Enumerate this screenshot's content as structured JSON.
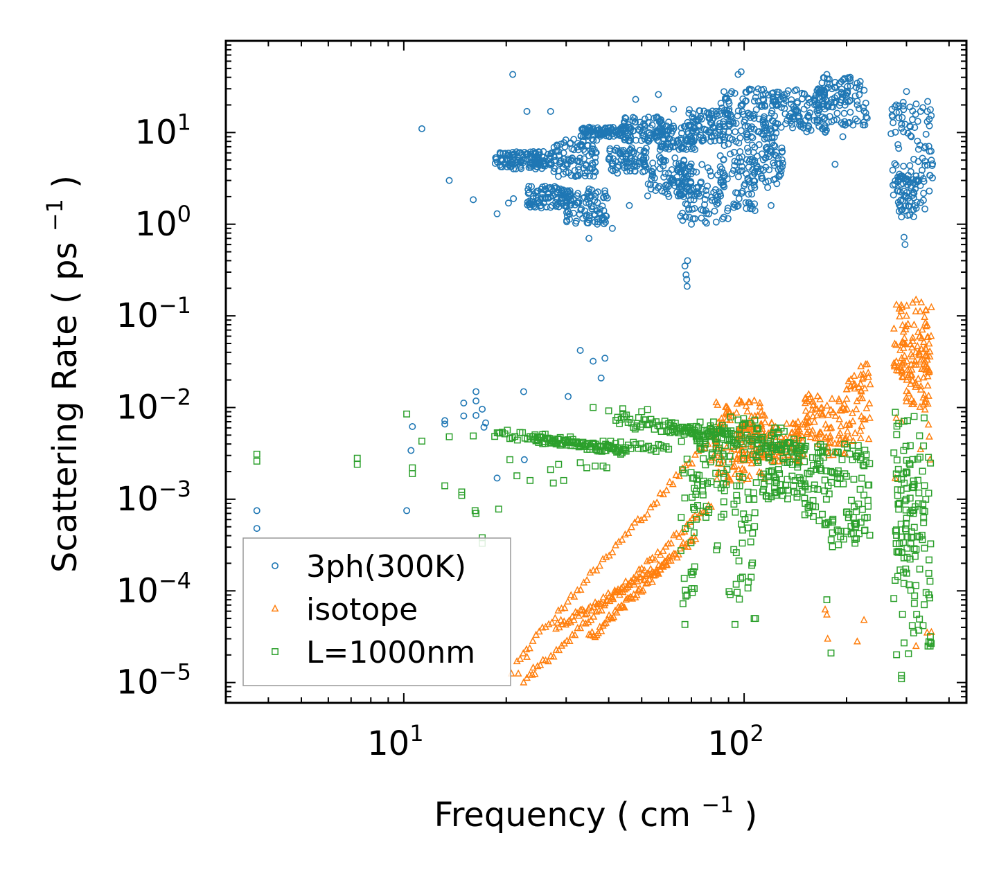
{
  "chart_data": {
    "type": "scatter",
    "xscale": "log",
    "yscale": "log",
    "xlabel": "Frequency",
    "xlabel_unit": "cm",
    "xlabel_exp": "−1",
    "ylabel": "Scattering Rate",
    "ylabel_unit": "ps",
    "ylabel_exp": "−1",
    "xlim": [
      3.0,
      450
    ],
    "ylim": [
      6e-06,
      100
    ],
    "x_ticks": [
      {
        "base": "10",
        "exp": "1",
        "value": 10
      },
      {
        "base": "10",
        "exp": "2",
        "value": 100
      }
    ],
    "y_ticks": [
      {
        "base": "10",
        "exp": "1",
        "value": 10
      },
      {
        "base": "10",
        "exp": "0",
        "value": 1
      },
      {
        "base": "10",
        "exp": "−1",
        "value": 0.1
      },
      {
        "base": "10",
        "exp": "−2",
        "value": 0.01
      },
      {
        "base": "10",
        "exp": "−3",
        "value": 0.001
      },
      {
        "base": "10",
        "exp": "−4",
        "value": 0.0001
      },
      {
        "base": "10",
        "exp": "−5",
        "value": 1e-05
      }
    ],
    "legend_position": "lower-left",
    "series": [
      {
        "name": "3ph(300K)",
        "marker": "circle",
        "color": "#1f77b4",
        "points": [
          [
            3.7,
            0.00075
          ],
          [
            3.7,
            0.00048
          ],
          [
            10.2,
            0.00075
          ],
          [
            10.5,
            0.0034
          ],
          [
            10.6,
            0.0062
          ],
          [
            11.3,
            11
          ],
          [
            13.2,
            0.0072
          ],
          [
            13.2,
            0.0066
          ],
          [
            13.6,
            3.0
          ],
          [
            15.0,
            0.0112
          ],
          [
            15.0,
            0.0081
          ],
          [
            16.0,
            1.85
          ],
          [
            16.3,
            0.0149
          ],
          [
            16.3,
            0.0118
          ],
          [
            16.3,
            0.0082
          ],
          [
            17.0,
            0.0096
          ],
          [
            17.2,
            0.0061
          ],
          [
            17.4,
            0.0068
          ],
          [
            18.8,
            1.3
          ],
          [
            18.8,
            0.0017
          ],
          [
            20.9,
            43
          ],
          [
            20.3,
            1.7
          ],
          [
            21.0,
            1.9
          ],
          [
            22.0,
            4.2
          ],
          [
            22.5,
            0.0149
          ],
          [
            22.6,
            0.0027
          ],
          [
            23.0,
            17
          ],
          [
            24.0,
            1.9
          ],
          [
            26.0,
            2.6
          ],
          [
            27.0,
            17
          ],
          [
            30.4,
            0.0132
          ],
          [
            30.0,
            1.6
          ],
          [
            33.0,
            0.042
          ],
          [
            35.0,
            0.7
          ],
          [
            36.0,
            0.032
          ],
          [
            38.0,
            0.021
          ],
          [
            39.0,
            0.0345
          ],
          [
            41.0,
            0.9
          ],
          [
            46.0,
            1.6
          ],
          [
            48.0,
            23
          ],
          [
            56.0,
            26
          ],
          [
            60.0,
            13
          ],
          [
            62.0,
            18
          ],
          [
            66.0,
            1.1
          ],
          [
            67.0,
            0.35
          ],
          [
            67.5,
            0.28
          ],
          [
            68.0,
            0.21
          ],
          [
            67.8,
            0.25
          ],
          [
            68.2,
            0.4
          ],
          [
            70.0,
            1.0
          ],
          [
            75.0,
            14
          ],
          [
            80.0,
            9
          ],
          [
            86.0,
            4
          ],
          [
            90.0,
            22
          ],
          [
            96.0,
            43
          ],
          [
            98.0,
            46
          ],
          [
            100.0,
            13
          ],
          [
            105.0,
            2.5
          ],
          [
            110.0,
            22
          ],
          [
            112.0,
            4
          ],
          [
            120.0,
            1.6
          ],
          [
            130.0,
            24
          ],
          [
            140.0,
            14
          ],
          [
            150.0,
            18
          ],
          [
            165.0,
            30
          ],
          [
            175.0,
            43
          ],
          [
            185.0,
            4.5
          ],
          [
            195.0,
            9
          ],
          [
            205.0,
            40
          ],
          [
            215.0,
            20
          ],
          [
            225.0,
            13
          ],
          [
            280.0,
            20
          ],
          [
            285.0,
            3
          ],
          [
            290.0,
            1.2
          ],
          [
            295.0,
            0.72
          ],
          [
            297.0,
            0.6
          ],
          [
            300.0,
            28
          ],
          [
            310.0,
            9
          ],
          [
            320.0,
            3
          ],
          [
            330.0,
            17
          ],
          [
            350.0,
            14
          ],
          [
            355.0,
            5
          ]
        ],
        "bands": [
          {
            "x": [
              18.5,
              28.0
            ],
            "y": [
              4.0,
              6.2
            ]
          },
          {
            "x": [
              23.0,
              31.0
            ],
            "y": [
              1.5,
              2.6
            ]
          },
          {
            "x": [
              27.0,
              37.0
            ],
            "y": [
              3.3,
              8.5
            ]
          },
          {
            "x": [
              30.0,
              40.0
            ],
            "y": [
              1.0,
              2.5
            ]
          },
          {
            "x": [
              33.0,
              44.0
            ],
            "y": [
              9.0,
              11.5
            ]
          },
          {
            "x": [
              40.0,
              52.0
            ],
            "y": [
              3.6,
              7.0
            ]
          },
          {
            "x": [
              44.0,
              58.0
            ],
            "y": [
              8.0,
              15.0
            ]
          },
          {
            "x": [
              52.0,
              70.0
            ],
            "y": [
              2.0,
              5.5
            ]
          },
          {
            "x": [
              55.0,
              72.0
            ],
            "y": [
              6.5,
              12.0
            ]
          },
          {
            "x": [
              68.0,
              92.0
            ],
            "y": [
              8.0,
              18.0
            ]
          },
          {
            "x": [
              65.0,
              90.0
            ],
            "y": [
              1.0,
              4.5
            ]
          },
          {
            "x": [
              85.0,
              125.0
            ],
            "y": [
              5.0,
              30.0
            ]
          },
          {
            "x": [
              92.0,
              108.0
            ],
            "y": [
              1.4,
              5.0
            ]
          },
          {
            "x": [
              100.0,
              130.0
            ],
            "y": [
              2.5,
              15.0
            ]
          },
          {
            "x": [
              120.0,
              175.0
            ],
            "y": [
              10.0,
              30.0
            ]
          },
          {
            "x": [
              160.0,
              230.0
            ],
            "y": [
              12.0,
              40.0
            ]
          },
          {
            "x": [
              270.0,
              360.0
            ],
            "y": [
              2.0,
              22.0
            ]
          },
          {
            "x": [
              280.0,
              340.0
            ],
            "y": [
              1.2,
              3.5
            ]
          }
        ]
      },
      {
        "name": "isotope",
        "marker": "triangle",
        "color": "#ff7f0e",
        "points": [
          [
            20.7,
            1.25e-05
          ],
          [
            21.7,
            1.25e-05
          ],
          [
            22.5,
            1e-05
          ],
          [
            23.0,
            1.9e-05
          ],
          [
            24.0,
            1.45e-05
          ],
          [
            173.0,
            6.25e-05
          ],
          [
            175.0,
            5.5e-05
          ],
          [
            176.0,
            3e-05
          ],
          [
            215.0,
            2.8e-05
          ],
          [
            225.0,
            4.8e-05
          ],
          [
            278.0,
            0.0017
          ],
          [
            280.0,
            0.0077
          ],
          [
            290.0,
            0.007
          ],
          [
            300.0,
            0.1
          ],
          [
            320.0,
            0.15
          ],
          [
            330.0,
            0.0035
          ],
          [
            340.0,
            0.0095
          ],
          [
            348.0,
            0.0065
          ],
          [
            350.0,
            0.0048
          ],
          [
            352.0,
            0.0027
          ],
          [
            355.0,
            3.55e-05
          ],
          [
            345.0,
            3.5e-05
          ],
          [
            320.0,
            2.5e-05
          ]
        ],
        "curves": [
          {
            "x": [
              21.5,
              95.0
            ],
            "y": [
              1.8e-05,
              0.0095
            ],
            "spread": 0.08
          },
          {
            "x": [
              23.0,
              80.0
            ],
            "y": [
              1.1e-05,
              0.0009
            ],
            "spread": 0.08
          },
          {
            "x": [
              28.0,
              60.0
            ],
            "y": [
              4e-05,
              0.0002
            ],
            "spread": 0.1
          },
          {
            "x": [
              35.0,
              72.0
            ],
            "y": [
              3e-05,
              0.0004
            ],
            "spread": 0.1
          }
        ],
        "bands": [
          {
            "x": [
              80.0,
              115.0
            ],
            "y": [
              0.0015,
              0.012
            ]
          },
          {
            "x": [
              95.0,
              150.0
            ],
            "y": [
              0.0025,
              0.007
            ]
          },
          {
            "x": [
              150.0,
              175.0
            ],
            "y": [
              0.004,
              0.015
            ]
          },
          {
            "x": [
              175.0,
              200.0
            ],
            "y": [
              0.003,
              0.0125
            ]
          },
          {
            "x": [
              200.0,
              235.0
            ],
            "y": [
              0.004,
              0.033
            ]
          },
          {
            "x": [
              275.0,
              355.0
            ],
            "y": [
              0.02,
              0.14
            ]
          },
          {
            "x": [
              290.0,
              350.0
            ],
            "y": [
              0.01,
              0.06
            ]
          }
        ]
      },
      {
        "name": "L=1000nm",
        "marker": "square",
        "color": "#2ca02c",
        "points": [
          [
            3.7,
            0.0031
          ],
          [
            3.7,
            0.0026
          ],
          [
            7.3,
            0.0028
          ],
          [
            7.3,
            0.0024
          ],
          [
            10.2,
            0.0085
          ],
          [
            10.6,
            0.0022
          ],
          [
            10.6,
            0.0019
          ],
          [
            11.3,
            0.0043
          ],
          [
            13.2,
            0.0014
          ],
          [
            13.6,
            0.0048
          ],
          [
            14.8,
            0.0011
          ],
          [
            14.8,
            0.0012
          ],
          [
            16.2,
            0.00075
          ],
          [
            16.3,
            0.0007
          ],
          [
            16.0,
            0.0049
          ],
          [
            17.0,
            0.00038
          ],
          [
            17.0,
            0.00033
          ],
          [
            19.0,
            0.00078
          ],
          [
            19.0,
            0.0053
          ],
          [
            20.5,
            0.0027
          ],
          [
            21.5,
            0.0018
          ],
          [
            23.5,
            0.0016
          ],
          [
            27.0,
            0.0021
          ],
          [
            27.5,
            0.0015
          ],
          [
            28.5,
            0.0024
          ],
          [
            29.5,
            0.0016
          ],
          [
            33.0,
            0.0025
          ],
          [
            34.5,
            0.0022
          ],
          [
            36.5,
            0.0023
          ],
          [
            38.5,
            0.0023
          ],
          [
            39.5,
            0.0022
          ],
          [
            36.0,
            0.01
          ],
          [
            40.0,
            0.0092
          ],
          [
            44.0,
            0.0097
          ],
          [
            50.0,
            0.009
          ],
          [
            52.0,
            0.0095
          ],
          [
            67.0,
            4.3e-05
          ],
          [
            68.0,
            9e-05
          ],
          [
            83.0,
            0.00028
          ],
          [
            83.5,
            0.00031
          ],
          [
            94.0,
            4.3e-05
          ],
          [
            107.0,
            5e-05
          ],
          [
            108.0,
            5e-05
          ],
          [
            180.0,
            2.1e-05
          ],
          [
            175.0,
            8e-05
          ],
          [
            290.0,
            1.1e-05
          ],
          [
            290.0,
            1.2e-05
          ],
          [
            347.0,
            2.5e-05
          ],
          [
            352.0,
            2.5e-05
          ]
        ],
        "curves": [
          {
            "x": [
              18.5,
              60.0
            ],
            "y": [
              0.0052,
              0.0035
            ],
            "spread": 0.1
          },
          {
            "x": [
              24.0,
              45.0
            ],
            "y": [
              0.0045,
              0.0033
            ],
            "spread": 0.08
          },
          {
            "x": [
              42.0,
              95.0
            ],
            "y": [
              0.0075,
              0.0045
            ],
            "spread": 0.15
          },
          {
            "x": [
              60.0,
              150.0
            ],
            "y": [
              0.006,
              0.0035
            ],
            "spread": 0.12
          }
        ],
        "bands": [
          {
            "x": [
              65.0,
              72.0
            ],
            "y": [
              7e-05,
              0.008
            ]
          },
          {
            "x": [
              72.0,
              90.0
            ],
            "y": [
              0.0006,
              0.007
            ]
          },
          {
            "x": [
              90.0,
              108.0
            ],
            "y": [
              8e-05,
              0.009
            ]
          },
          {
            "x": [
              108.0,
              150.0
            ],
            "y": [
              0.001,
              0.006
            ]
          },
          {
            "x": [
              150.0,
              180.0
            ],
            "y": [
              0.0005,
              0.004
            ]
          },
          {
            "x": [
              180.0,
              235.0
            ],
            "y": [
              0.0003,
              0.004
            ]
          },
          {
            "x": [
              275.0,
              355.0
            ],
            "y": [
              2e-05,
              0.009
            ]
          },
          {
            "x": [
              280.0,
              340.0
            ],
            "y": [
              0.0002,
              0.003
            ]
          }
        ]
      }
    ]
  }
}
